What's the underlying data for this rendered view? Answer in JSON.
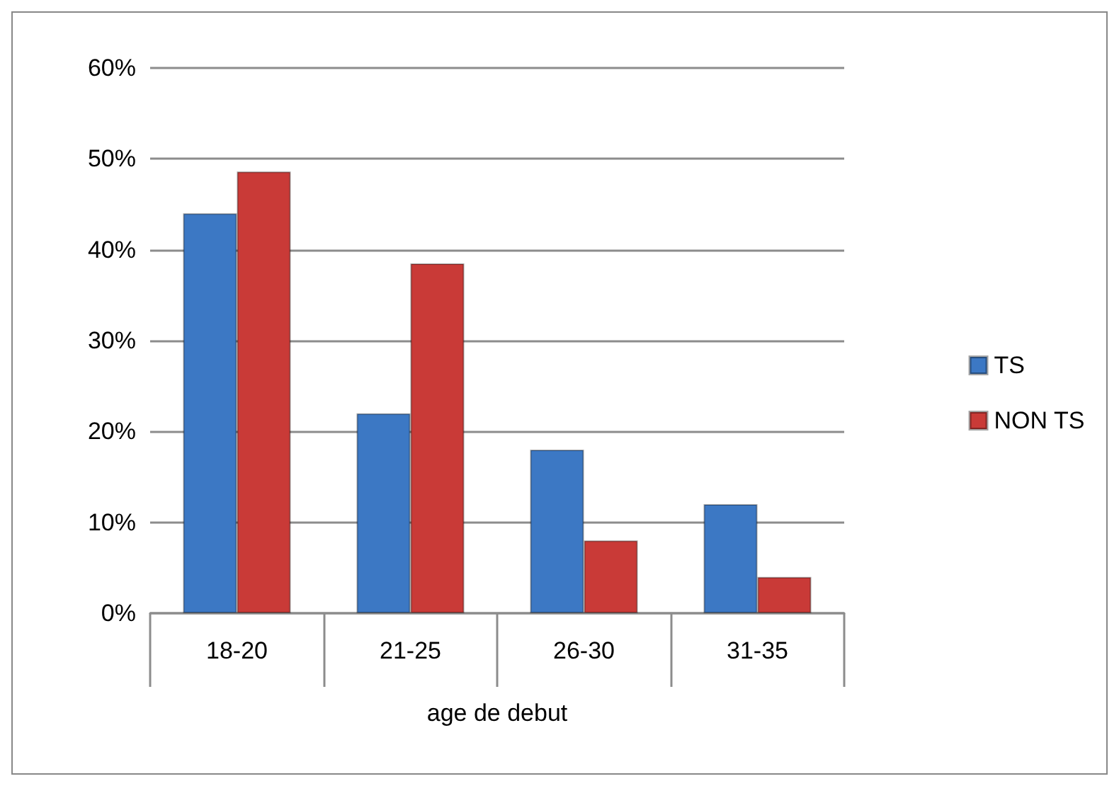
{
  "chart_data": {
    "type": "bar",
    "xlabel": "age de debut",
    "categories": [
      "18-20",
      "21-25",
      "26-30",
      "31-35"
    ],
    "series": [
      {
        "name": "TS",
        "color": "#3c78c4",
        "values": [
          44,
          22,
          18,
          12
        ]
      },
      {
        "name": "NON TS",
        "color": "#c93a37",
        "values": [
          48.6,
          38.5,
          8,
          4
        ]
      }
    ],
    "ylim": [
      0,
      60
    ],
    "yticks": [
      {
        "value": 0,
        "label": "0%"
      },
      {
        "value": 10,
        "label": "10%"
      },
      {
        "value": 20,
        "label": "20%"
      },
      {
        "value": 30,
        "label": "30%"
      },
      {
        "value": 40,
        "label": "40%"
      },
      {
        "value": 50,
        "label": "50%"
      },
      {
        "value": 60,
        "label": "60%"
      }
    ],
    "grid": "y",
    "legend": "right"
  }
}
